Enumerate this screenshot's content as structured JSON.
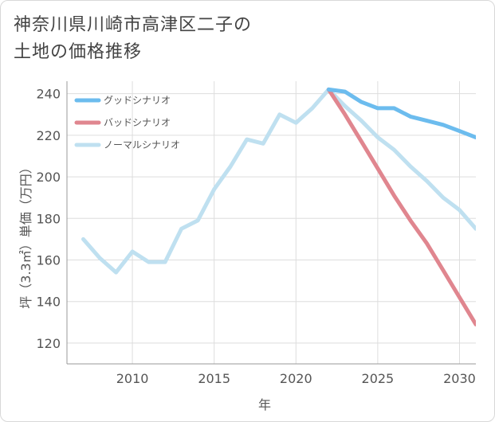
{
  "page": {
    "title_line1": "神奈川県川崎市高津区二子の",
    "title_line2": "土地の価格推移"
  },
  "chart_data": {
    "type": "line",
    "title": "神奈川県川崎市高津区二子の土地の価格推移",
    "xlabel": "年",
    "ylabel": "坪（3.3㎡）単価（万円）",
    "xlim": [
      2006,
      2031
    ],
    "ylim": [
      110,
      246
    ],
    "xticks": [
      2010,
      2015,
      2020,
      2025,
      2030
    ],
    "yticks": [
      120,
      140,
      160,
      180,
      200,
      220,
      240
    ],
    "grid": true,
    "legend_position": "top-left",
    "series": [
      {
        "name": "グッドシナリオ",
        "color": "#6cbcee",
        "x": [
          2022,
          2023,
          2024,
          2025,
          2026,
          2027,
          2028,
          2029,
          2030,
          2031
        ],
        "values": [
          242,
          241,
          236,
          233,
          233,
          229,
          227,
          225,
          222,
          219
        ]
      },
      {
        "name": "バッドシナリオ",
        "color": "#e0868f",
        "x": [
          2022,
          2023,
          2024,
          2025,
          2026,
          2027,
          2028,
          2029,
          2030,
          2031
        ],
        "values": [
          242,
          230,
          217,
          204,
          191,
          179,
          168,
          155,
          142,
          129
        ]
      },
      {
        "name": "ノーマルシナリオ",
        "color": "#bfe0f0",
        "x": [
          2007,
          2008,
          2009,
          2010,
          2011,
          2012,
          2013,
          2014,
          2015,
          2016,
          2017,
          2018,
          2019,
          2020,
          2021,
          2022,
          2023,
          2024,
          2025,
          2026,
          2027,
          2028,
          2029,
          2030,
          2031
        ],
        "values": [
          170,
          161,
          154,
          164,
          159,
          159,
          175,
          179,
          194,
          205,
          218,
          216,
          230,
          226,
          233,
          242,
          234,
          227,
          219,
          213,
          205,
          198,
          190,
          184,
          175
        ]
      }
    ]
  }
}
